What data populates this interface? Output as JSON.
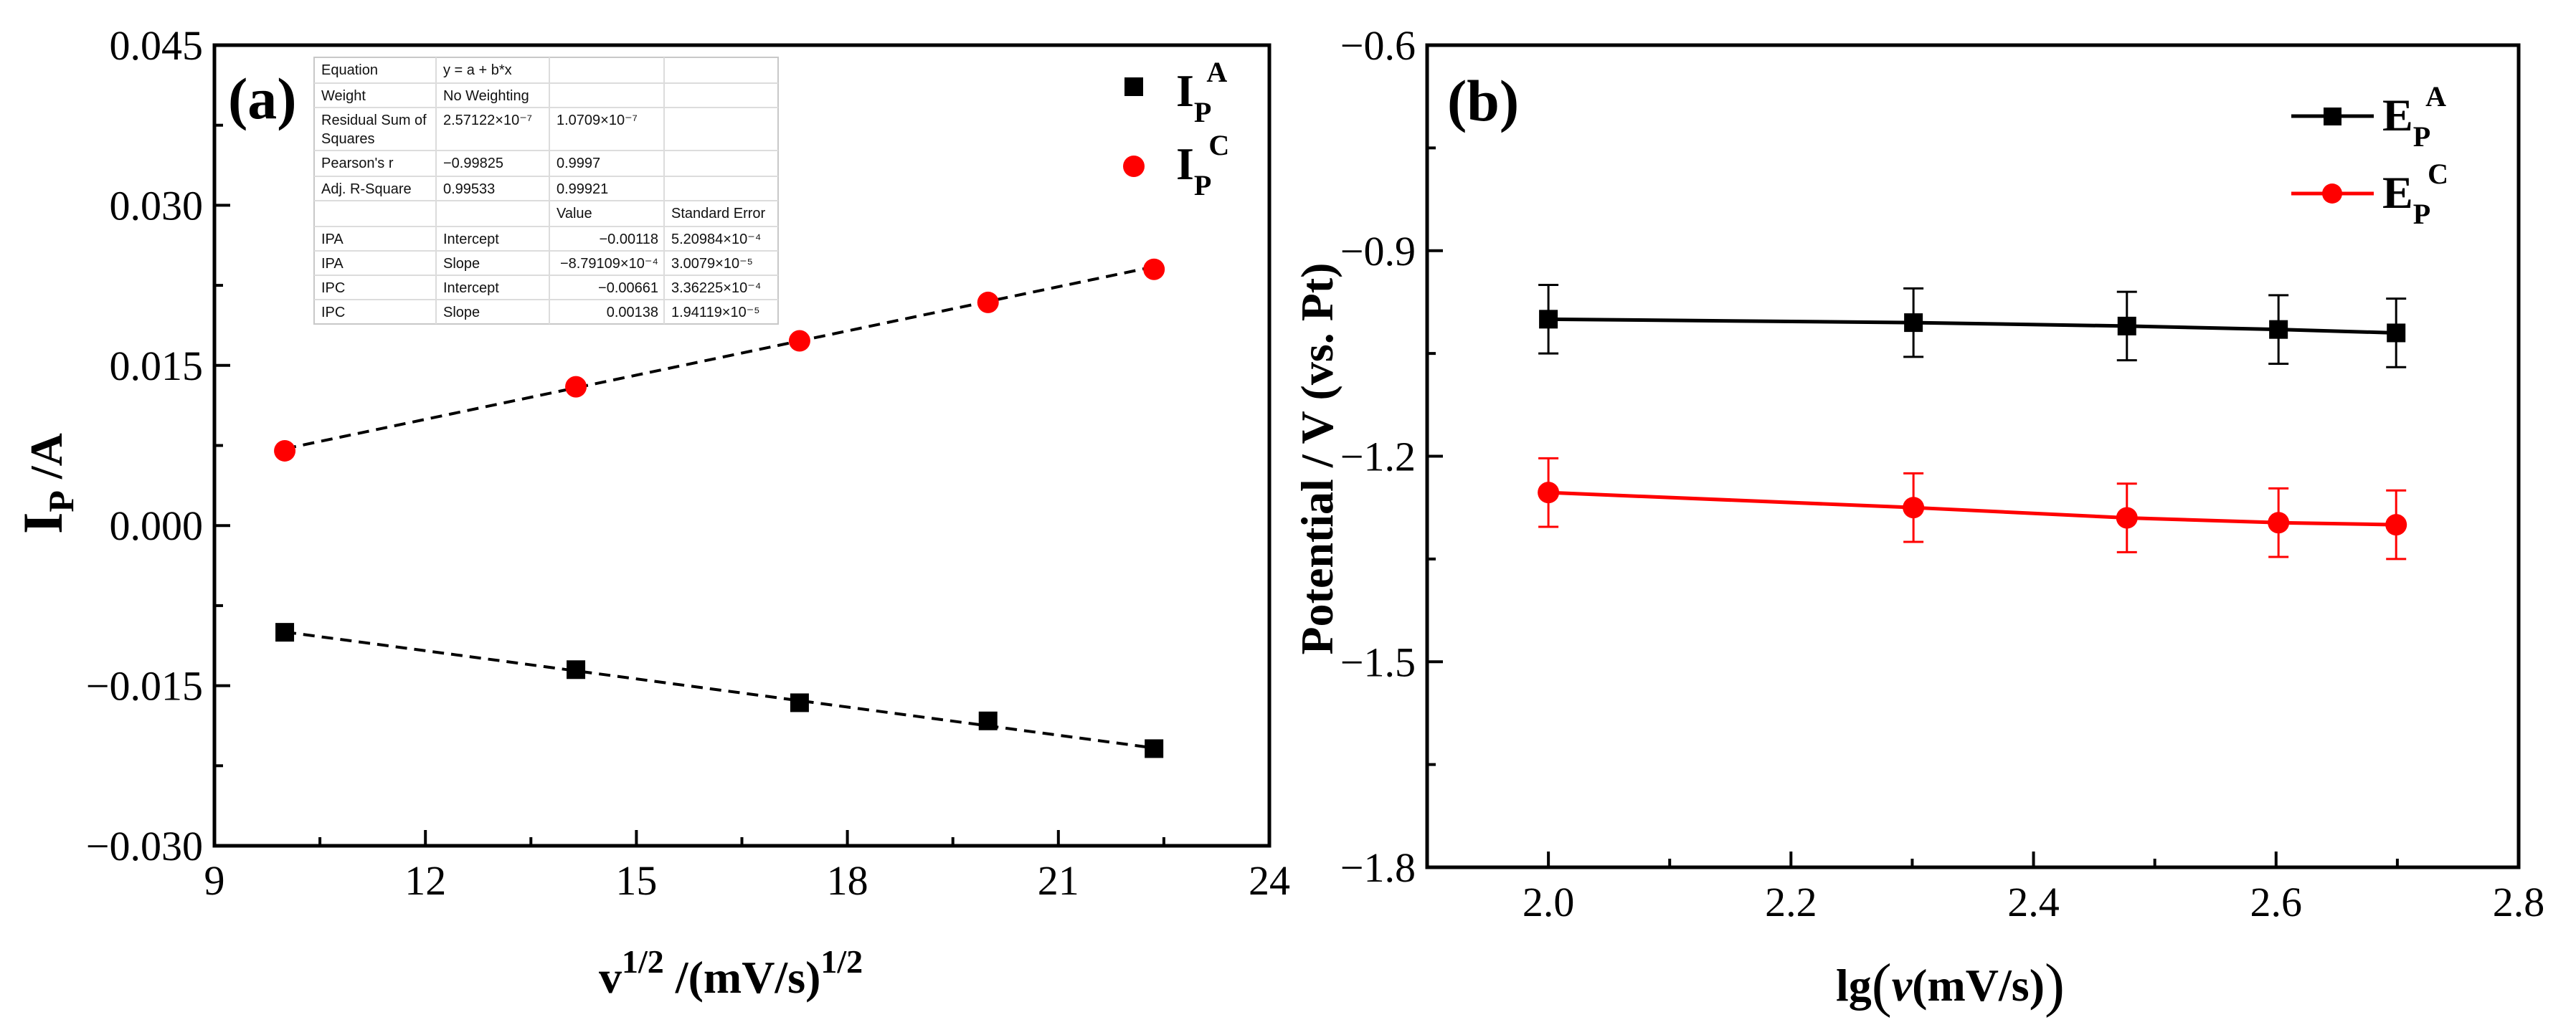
{
  "chart_data": [
    {
      "type": "scatter",
      "panel_label": "(a)",
      "xlabel_base": "v",
      "xlabel_base_sup": "1/2",
      "xlabel_unit": " /(mV/s)",
      "xlabel_unit_sup": "1/2",
      "ylabel_main": "I",
      "ylabel_sub": "P",
      "ylabel_rest": " /A",
      "xlim": [
        9,
        24
      ],
      "ylim": [
        -0.03,
        0.045
      ],
      "xticks": [
        "9",
        "12",
        "15",
        "18",
        "21",
        "24"
      ],
      "yticks": [
        "−0.030",
        "−0.015",
        "0.000",
        "0.015",
        "0.030",
        "0.045"
      ],
      "series": [
        {
          "name": "IPA",
          "legend_main": "I",
          "legend_sub": "P",
          "legend_sup": "A",
          "marker": "square",
          "color": "#000000",
          "x": [
            10.0,
            14.14,
            17.32,
            20.0,
            22.36
          ],
          "y": [
            -0.01,
            -0.0135,
            -0.0166,
            -0.0183,
            -0.0209
          ],
          "fit": {
            "intercept": -0.00118,
            "slope": -0.000879109
          }
        },
        {
          "name": "IPC",
          "legend_main": "I",
          "legend_sub": "P",
          "legend_sup": "C",
          "marker": "circle",
          "color": "#ff0000",
          "x": [
            10.0,
            14.14,
            17.32,
            20.0,
            22.36
          ],
          "y": [
            0.007,
            0.013,
            0.0173,
            0.0209,
            0.024
          ],
          "fit": {
            "intercept": -0.00661,
            "slope": 0.00138
          }
        }
      ],
      "fit_table": {
        "rows": [
          [
            "Equation",
            "y = a + b*x",
            "",
            ""
          ],
          [
            "Weight",
            "No Weighting",
            "",
            ""
          ],
          [
            "Residual Sum of Squares",
            "2.57122×10⁻⁷",
            "1.0709×10⁻⁷",
            ""
          ],
          [
            "Pearson's r",
            "−0.99825",
            "0.9997",
            ""
          ],
          [
            "Adj. R-Square",
            "0.99533",
            "0.99921",
            ""
          ],
          [
            "",
            "",
            "Value",
            "Standard Error"
          ],
          [
            "IPA",
            "Intercept",
            "−0.00118",
            "5.20984×10⁻⁴"
          ],
          [
            "IPA",
            "Slope",
            "−8.79109×10⁻⁴",
            "3.0079×10⁻⁵"
          ],
          [
            "IPC",
            "Intercept",
            "−0.00661",
            "3.36225×10⁻⁴"
          ],
          [
            "IPC",
            "Slope",
            "0.00138",
            "1.94119×10⁻⁵"
          ]
        ]
      }
    },
    {
      "type": "line",
      "panel_label": "(b)",
      "xlabel_pre": "lg",
      "xlabel_open": "(",
      "xlabel_var": "v",
      "xlabel_unit": "(mV/s)",
      "xlabel_close": ")",
      "ylabel": "Potential / V (vs. Pt)",
      "xlim": [
        1.9,
        2.8
      ],
      "ylim": [
        -1.8,
        -0.6
      ],
      "xticks": [
        "2.0",
        "2.2",
        "2.4",
        "2.6",
        "2.8"
      ],
      "yticks": [
        "−1.8",
        "−1.5",
        "−1.2",
        "−0.9",
        "−0.6"
      ],
      "series": [
        {
          "name": "EPA",
          "legend_main": "E",
          "legend_sub": "P",
          "legend_sup": "A",
          "marker": "square",
          "color": "#000000",
          "x": [
            2.0,
            2.301,
            2.477,
            2.602,
            2.699
          ],
          "y": [
            -1.0,
            -1.005,
            -1.01,
            -1.015,
            -1.02
          ],
          "error": 0.05
        },
        {
          "name": "EPC",
          "legend_main": "E",
          "legend_sub": "P",
          "legend_sup": "C",
          "marker": "circle",
          "color": "#ff0000",
          "x": [
            2.0,
            2.301,
            2.477,
            2.602,
            2.699
          ],
          "y": [
            -1.253,
            -1.275,
            -1.29,
            -1.297,
            -1.3
          ],
          "error": 0.05
        }
      ]
    }
  ]
}
